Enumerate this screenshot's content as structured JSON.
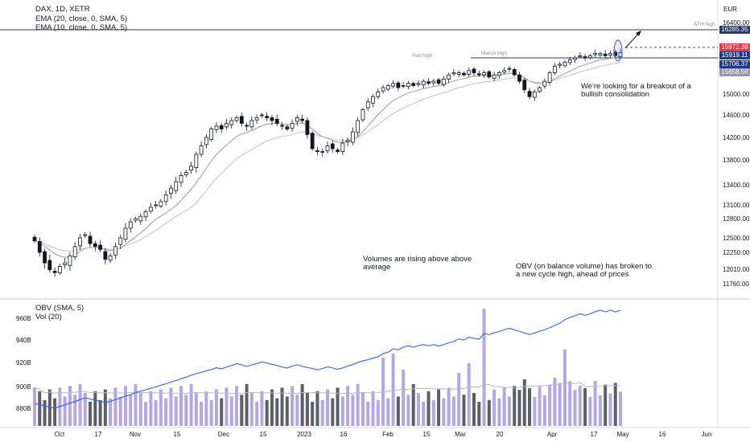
{
  "symbol": {
    "name": "DAX, 1D, XETR"
  },
  "indicators": {
    "ema20": "EMA (20, close, 0, SMA, 5)",
    "ema10": "EMA (10, close, 0, SMA, 5)",
    "obv": "OBV (SMA, 5)",
    "vol": "Vol (20)"
  },
  "currency": "EUR",
  "price_tags": [
    {
      "value": "16285.35",
      "color": "#2a3a6b"
    },
    {
      "value": "15972.38",
      "color": "#f23645"
    },
    {
      "value": "15919.11",
      "color": "#1e3a8a"
    },
    {
      "value": "15706.37",
      "color": "#1e3a8a"
    },
    {
      "value": "15658.56",
      "color": "#9598a1"
    }
  ],
  "annotations": {
    "ath": "ATH high",
    "feb": "Feb high",
    "march": "March high",
    "breakout": "We're looking for a breakout of a bullish consolidation",
    "volumes": "Volumes are rising above above average",
    "obv": "OBV (on balance volume) has broken to a new cycle high, ahead of prices"
  },
  "chart_data": {
    "type": "candlestick",
    "price_axis": {
      "ticks": [
        "16400.00",
        "16000.00",
        "15000.00",
        "14600.00",
        "14200.00",
        "13800.00",
        "13400.00",
        "13100.00",
        "12800.00",
        "12500.00",
        "12250.00",
        "12010.00",
        "11760.00"
      ],
      "ylim": [
        11700,
        16450
      ]
    },
    "obv_axis": {
      "ticks": [
        "960B",
        "940B",
        "920B",
        "900B",
        "880B"
      ]
    },
    "x_ticks": [
      "Oct",
      "17",
      "Nov",
      "15",
      "Dec",
      "15",
      "2023",
      "16",
      "Feb",
      "15",
      "Mar",
      "20",
      "Apr",
      "17",
      "May",
      "16",
      "Jun"
    ],
    "levels": [
      16285.35,
      15706.37
    ],
    "closes": [
      12450,
      12250,
      12100,
      12000,
      11950,
      12050,
      12100,
      12200,
      12350,
      12500,
      12550,
      12400,
      12350,
      12300,
      12150,
      12200,
      12350,
      12500,
      12650,
      12750,
      12800,
      12850,
      12950,
      13050,
      13100,
      13150,
      13250,
      13350,
      13450,
      13550,
      13600,
      13700,
      13900,
      14050,
      14200,
      14350,
      14400,
      14350,
      14450,
      14500,
      14550,
      14450,
      14400,
      14500,
      14550,
      14600,
      14550,
      14500,
      14450,
      14400,
      14350,
      14450,
      14550,
      14500,
      14250,
      14000,
      13950,
      13950,
      14050,
      14000,
      13950,
      14100,
      14150,
      14300,
      14500,
      14700,
      14850,
      14950,
      15050,
      15150,
      15200,
      15250,
      15150,
      15200,
      15250,
      15200,
      15250,
      15300,
      15250,
      15300,
      15250,
      15350,
      15450,
      15500,
      15500,
      15450,
      15550,
      15500,
      15450,
      15500,
      15400,
      15450,
      15500,
      15550,
      15600,
      15450,
      15300,
      15100,
      14950,
      15050,
      15150,
      15300,
      15500,
      15650,
      15700,
      15750,
      15800,
      15850,
      15900,
      15850,
      15900,
      15950,
      15950,
      15900,
      15950,
      15900,
      15972
    ]
  }
}
